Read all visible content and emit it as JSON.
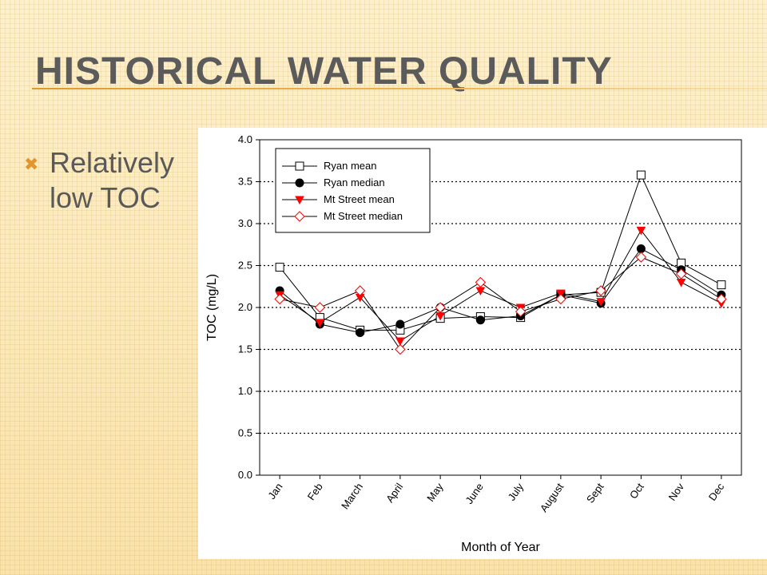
{
  "slide": {
    "title": "Historical Water Quality",
    "bullet": "Relatively low TOC"
  },
  "chart_data": {
    "type": "line",
    "categories": [
      "Jan",
      "Feb",
      "March",
      "April",
      "May",
      "June",
      "July",
      "August",
      "Sept",
      "Oct",
      "Nov",
      "Dec"
    ],
    "xlabel": "Month of Year",
    "ylabel": "TOC (mg/L)",
    "ylim": [
      0,
      4.0
    ],
    "yticks": [
      "0.0",
      "0.5",
      "1.0",
      "1.5",
      "2.0",
      "2.5",
      "3.0",
      "3.5",
      "4.0"
    ],
    "grid": "horizontal dotted",
    "legend_position": "top-left",
    "series": [
      {
        "name": "Ryan mean",
        "marker": "square-open",
        "color": "#000000",
        "values": [
          2.48,
          1.88,
          1.73,
          1.73,
          1.87,
          1.89,
          1.88,
          2.15,
          2.18,
          3.58,
          2.53,
          2.27
        ]
      },
      {
        "name": "Ryan median",
        "marker": "circle-filled",
        "color": "#000000",
        "values": [
          2.2,
          1.8,
          1.7,
          1.8,
          2.0,
          1.85,
          1.9,
          2.15,
          2.05,
          2.7,
          2.45,
          2.15
        ]
      },
      {
        "name": "Mt Street mean",
        "marker": "triangle-down-filled",
        "color": "#ff0000",
        "values": [
          2.15,
          1.82,
          2.12,
          1.6,
          1.9,
          2.2,
          2.0,
          2.17,
          2.07,
          2.92,
          2.3,
          2.05
        ]
      },
      {
        "name": "Mt Street median",
        "marker": "diamond-open",
        "color": "#ff0000",
        "values": [
          2.1,
          2.0,
          2.2,
          1.5,
          2.0,
          2.3,
          1.95,
          2.1,
          2.2,
          2.6,
          2.4,
          2.1
        ]
      }
    ]
  }
}
